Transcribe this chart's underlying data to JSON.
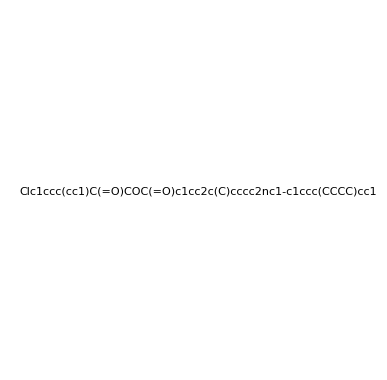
{
  "smiles": "Clc1ccc(cc1)C(=O)COC(=O)c1cc2c(C)cccc2nc1-c1ccc(CCCC)cc1",
  "title": "",
  "background_color": "#ffffff",
  "line_color": "#2d2d6b",
  "atom_color_map": {
    "O": "#8B4513",
    "N": "#2d2d6b",
    "Cl": "#2d2d6b",
    "C": "#2d2d6b"
  },
  "figsize": [
    3.87,
    3.8
  ],
  "dpi": 100
}
